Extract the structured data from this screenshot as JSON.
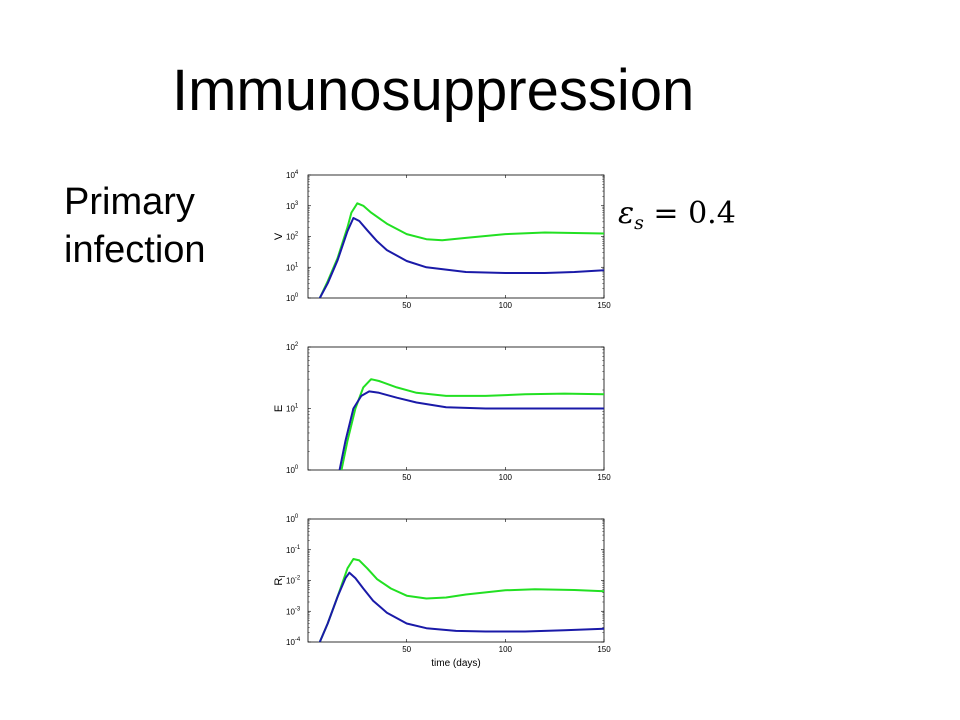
{
  "slide": {
    "title": "Immunosuppression",
    "side_label_line1": "Primary",
    "side_label_line2": "infection",
    "equation": {
      "symbol": "ε",
      "subscript": "s",
      "rhs": " = 0.4"
    }
  },
  "colors": {
    "green": "#22e022",
    "blue": "#1a1aa8",
    "axes": "#000000"
  },
  "chart_data": [
    {
      "type": "line",
      "ylabel": "V",
      "xlabel": "",
      "xlim": [
        0,
        150
      ],
      "x_ticks": [
        "50",
        "100",
        "150"
      ],
      "yscale": "log",
      "ylim_exp": [
        0,
        4
      ],
      "y_tick_labels": [
        "10",
        "10",
        "10",
        "10",
        "10"
      ],
      "y_tick_exps": [
        "0",
        "1",
        "2",
        "3",
        "4"
      ],
      "grid": false,
      "series": [
        {
          "color": "green",
          "x": [
            6,
            10,
            15,
            20,
            22,
            25,
            28,
            32,
            40,
            50,
            60,
            68,
            80,
            100,
            120,
            135,
            150
          ],
          "y": [
            1,
            3.5,
            20,
            200,
            600,
            1200,
            1000,
            600,
            260,
            120,
            82,
            76,
            90,
            120,
            135,
            130,
            125
          ]
        },
        {
          "color": "blue",
          "x": [
            6,
            10,
            15,
            20,
            23,
            26,
            30,
            35,
            40,
            50,
            60,
            80,
            100,
            120,
            135,
            150
          ],
          "y": [
            1,
            3,
            17,
            150,
            400,
            320,
            160,
            70,
            36,
            16,
            10,
            7,
            6.5,
            6.5,
            7,
            8
          ]
        }
      ]
    },
    {
      "type": "line",
      "ylabel": "E",
      "xlabel": "",
      "xlim": [
        0,
        150
      ],
      "x_ticks": [
        "50",
        "100",
        "150"
      ],
      "yscale": "log",
      "ylim_exp": [
        0,
        2
      ],
      "y_tick_labels": [
        "10",
        "10",
        "10"
      ],
      "y_tick_exps": [
        "0",
        "1",
        "2"
      ],
      "grid": false,
      "series": [
        {
          "color": "green",
          "x": [
            17,
            20,
            24,
            28,
            32,
            36,
            45,
            55,
            70,
            90,
            110,
            130,
            150
          ],
          "y": [
            1,
            3,
            10,
            22,
            30,
            28,
            22,
            18,
            16,
            16,
            17,
            17.5,
            17
          ]
        },
        {
          "color": "blue",
          "x": [
            16,
            19,
            23,
            27,
            31,
            36,
            45,
            55,
            70,
            90,
            110,
            130,
            150
          ],
          "y": [
            1,
            3,
            10,
            16,
            19,
            18,
            15,
            12.5,
            10.5,
            10,
            10,
            10,
            10
          ]
        }
      ]
    },
    {
      "type": "line",
      "ylabel": "R",
      "ylabel_sub": "I",
      "xlabel": "time (days)",
      "xlim": [
        0,
        150
      ],
      "x_ticks": [
        "50",
        "100",
        "150"
      ],
      "yscale": "log",
      "ylim_exp": [
        -4,
        0
      ],
      "y_tick_labels": [
        "10",
        "10",
        "10",
        "10",
        "10"
      ],
      "y_tick_exps": [
        "-4",
        "-3",
        "-2",
        "-1",
        "0"
      ],
      "grid": false,
      "series": [
        {
          "color": "green",
          "x": [
            6,
            10,
            15,
            20,
            23,
            26,
            30,
            35,
            42,
            50,
            60,
            70,
            80,
            100,
            115,
            135,
            150
          ],
          "y": [
            0.0001,
            0.0004,
            0.003,
            0.025,
            0.05,
            0.045,
            0.025,
            0.011,
            0.0055,
            0.0032,
            0.0026,
            0.0028,
            0.0035,
            0.0048,
            0.0052,
            0.0049,
            0.0045
          ]
        },
        {
          "color": "blue",
          "x": [
            6,
            10,
            15,
            19,
            21,
            24,
            28,
            33,
            40,
            50,
            60,
            75,
            90,
            110,
            130,
            150
          ],
          "y": [
            0.0001,
            0.0004,
            0.003,
            0.012,
            0.018,
            0.012,
            0.0055,
            0.0022,
            0.0009,
            0.0004,
            0.00028,
            0.00023,
            0.00022,
            0.00022,
            0.00024,
            0.00027
          ]
        }
      ]
    }
  ]
}
